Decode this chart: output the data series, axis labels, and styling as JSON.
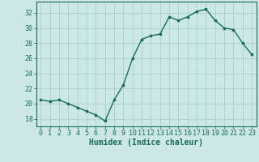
{
  "x": [
    0,
    1,
    2,
    3,
    4,
    5,
    6,
    7,
    8,
    9,
    10,
    11,
    12,
    13,
    14,
    15,
    16,
    17,
    18,
    19,
    20,
    21,
    22,
    23
  ],
  "y": [
    20.5,
    20.3,
    20.5,
    20.0,
    19.5,
    19.0,
    18.5,
    17.7,
    20.5,
    22.5,
    26.0,
    28.5,
    29.0,
    29.2,
    31.5,
    31.0,
    31.5,
    32.2,
    32.5,
    31.0,
    30.0,
    29.8,
    28.0,
    26.5
  ],
  "xlabel": "Humidex (Indice chaleur)",
  "ylim": [
    17.0,
    33.5
  ],
  "xlim": [
    -0.5,
    23.5
  ],
  "yticks": [
    18,
    20,
    22,
    24,
    26,
    28,
    30,
    32
  ],
  "xticks": [
    0,
    1,
    2,
    3,
    4,
    5,
    6,
    7,
    8,
    9,
    10,
    11,
    12,
    13,
    14,
    15,
    16,
    17,
    18,
    19,
    20,
    21,
    22,
    23
  ],
  "line_color": "#1a6b5a",
  "marker_color": "#1a6b5a",
  "bg_color": "#cce8e4",
  "grid_color": "#aed4cf",
  "axis_color": "#1a6b5a",
  "label_color": "#1a6b5a",
  "font_family": "monospace",
  "tick_fontsize": 6.0,
  "xlabel_fontsize": 7.0
}
